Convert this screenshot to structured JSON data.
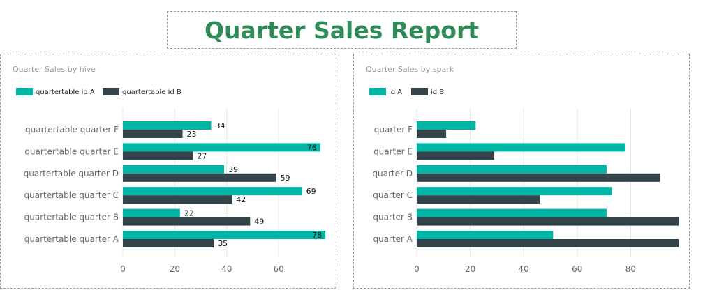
{
  "report_title": "Quarter Sales Report",
  "colors": {
    "series_a": "#00b5a5",
    "series_b": "#33434a",
    "title": "#2e8b57",
    "axis_text": "#666666",
    "panel_title": "#999999",
    "grid": "#e4e4e4"
  },
  "chart_data": [
    {
      "type": "bar",
      "orientation": "horizontal",
      "title": "Quarter Sales by hive",
      "categories": [
        "quartertable quarter F",
        "quartertable quarter E",
        "quartertable quarter D",
        "quartertable quarter C",
        "quartertable quarter B",
        "quartertable quarter A"
      ],
      "series": [
        {
          "name": "quartertable id A",
          "values": [
            34,
            76,
            39,
            69,
            22,
            78
          ]
        },
        {
          "name": "quartertable id B",
          "values": [
            23,
            27,
            59,
            42,
            49,
            35
          ]
        }
      ],
      "xticks": [
        0,
        20,
        40,
        60
      ],
      "xlim": [
        0,
        80
      ],
      "data_labels": true,
      "legend_position": "top-left",
      "grid": true
    },
    {
      "type": "bar",
      "orientation": "horizontal",
      "title": "Quarter Sales by spark",
      "categories": [
        "quarter F",
        "quarter E",
        "quarter D",
        "quarter C",
        "quarter B",
        "quarter A"
      ],
      "series": [
        {
          "name": "id A",
          "values": [
            22,
            78,
            71,
            73,
            71,
            51
          ]
        },
        {
          "name": "id B",
          "values": [
            11,
            29,
            91,
            46,
            98,
            98
          ]
        }
      ],
      "xticks": [
        0,
        20,
        40,
        60,
        80
      ],
      "xlim": [
        0,
        100
      ],
      "data_labels": false,
      "legend_position": "top-left",
      "grid": true
    }
  ]
}
